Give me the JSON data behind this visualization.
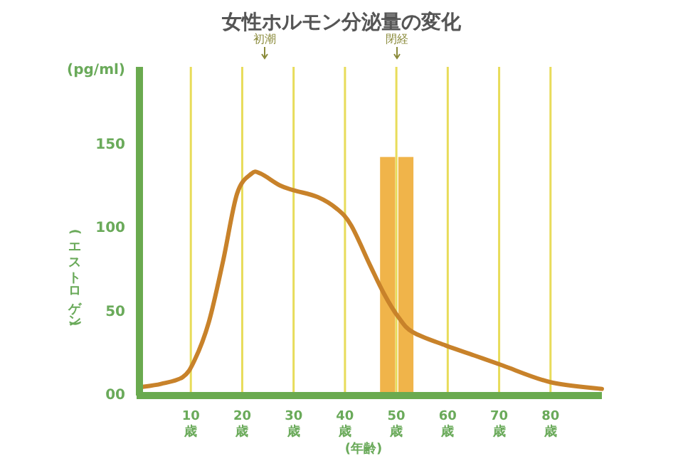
{
  "chart_data": {
    "type": "line",
    "title": "女性ホルモン分泌量の変化",
    "xlabel": "(年齢)",
    "ylabel": "(エストロゲン)",
    "annotations": [
      "(pg/ml)",
      "初潮",
      "閉経"
    ],
    "xlim": [
      0,
      90
    ],
    "xticks": [
      {
        "value": 10,
        "label": "10\n歳"
      },
      {
        "value": 20,
        "label": "20\n歳"
      },
      {
        "value": 30,
        "label": "30\n歳"
      },
      {
        "value": 40,
        "label": "40\n歳"
      },
      {
        "value": 50,
        "label": "50\n歳"
      },
      {
        "value": 60,
        "label": "60\n歳"
      },
      {
        "value": 70,
        "label": "70\n歳"
      },
      {
        "value": 80,
        "label": "80\n歳"
      }
    ],
    "ylim": [
      0,
      197
    ],
    "yticks": [
      {
        "value": 0,
        "label": "00"
      },
      50,
      100,
      150
    ],
    "grid": "x",
    "series": [
      {
        "type": "bar",
        "color": "#f0b44a",
        "x": [
          48.3,
          51.85
        ],
        "values": [
          143,
          143
        ]
      },
      {
        "color": "#c8822a",
        "x": [
          0.1,
          4.2,
          8.4,
          10.7,
          13.5,
          16.3,
          19.0,
          21.8,
          23.6,
          27.3,
          30.1,
          34.7,
          38.4,
          41.2,
          44.9,
          47.6,
          50.4,
          53.2,
          59.6,
          65.2,
          70.7,
          80,
          90
        ],
        "values": [
          5,
          7,
          11,
          21,
          44,
          81,
          121,
          133,
          133,
          126,
          123,
          119,
          112,
          102,
          78,
          61,
          47,
          38,
          30,
          24,
          18,
          8,
          4
        ]
      }
    ]
  }
}
